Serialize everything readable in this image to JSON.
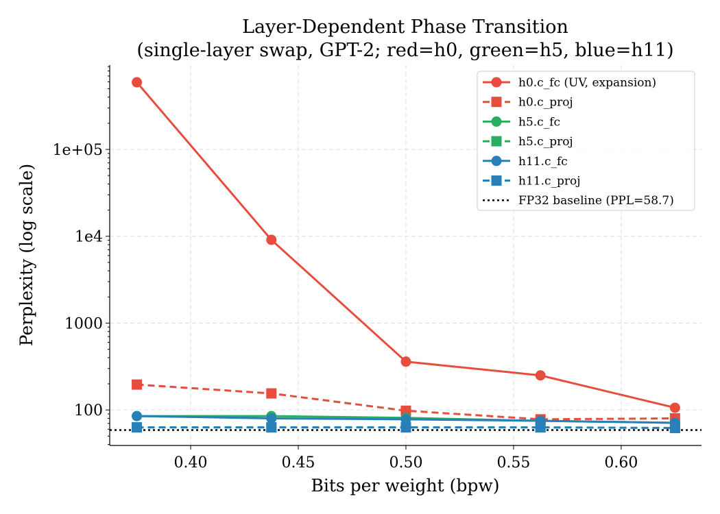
{
  "chart_data": {
    "type": "line",
    "title": "Layer-Dependent Phase Transition",
    "subtitle": "(single-layer swap, GPT-2; red=h0, green=h5, blue=h11)",
    "xlabel": "Bits per weight (bpw)",
    "ylabel": "Perplexity (log scale)",
    "y_scale": "log",
    "xlim": [
      0.3624,
      0.6373
    ],
    "ylim": [
      39,
      935000
    ],
    "grid": true,
    "legend_position": "top-right",
    "x_ticks": [
      {
        "value": 0.4,
        "label": "0.40"
      },
      {
        "value": 0.45,
        "label": "0.45"
      },
      {
        "value": 0.5,
        "label": "0.50"
      },
      {
        "value": 0.55,
        "label": "0.55"
      },
      {
        "value": 0.6,
        "label": "0.60"
      }
    ],
    "y_ticks": [
      {
        "value": 100,
        "label": "100"
      },
      {
        "value": 1000,
        "label": "1000"
      },
      {
        "value": 10000,
        "label": "1e4"
      },
      {
        "value": 100000,
        "label": "1e+05"
      }
    ],
    "x": [
      0.375,
      0.4375,
      0.5,
      0.5625,
      0.625
    ],
    "series": [
      {
        "name": "h0.c_fc (UV, expansion)",
        "color": "#e74c3c",
        "marker": "circle",
        "dash": false,
        "values": [
          593000,
          9100,
          360,
          250,
          106
        ]
      },
      {
        "name": "h0.c_proj",
        "color": "#e74c3c",
        "marker": "square",
        "dash": true,
        "values": [
          196,
          155,
          98,
          78,
          80
        ]
      },
      {
        "name": "h5.c_fc",
        "color": "#27ae60",
        "marker": "circle",
        "dash": false,
        "values": [
          85,
          85,
          81,
          75,
          71
        ]
      },
      {
        "name": "h5.c_proj",
        "color": "#27ae60",
        "marker": "square",
        "dash": true,
        "values": [
          63,
          63,
          63,
          63,
          62
        ]
      },
      {
        "name": "h11.c_fc",
        "color": "#2980b9",
        "marker": "circle",
        "dash": false,
        "values": [
          85,
          80,
          78,
          75,
          71
        ]
      },
      {
        "name": "h11.c_proj",
        "color": "#2980b9",
        "marker": "square",
        "dash": true,
        "values": [
          63,
          63,
          63,
          63,
          62
        ]
      }
    ],
    "baseline": {
      "name": "FP32 baseline (PPL=58.7)",
      "value": 58.7,
      "color": "#000000"
    }
  }
}
